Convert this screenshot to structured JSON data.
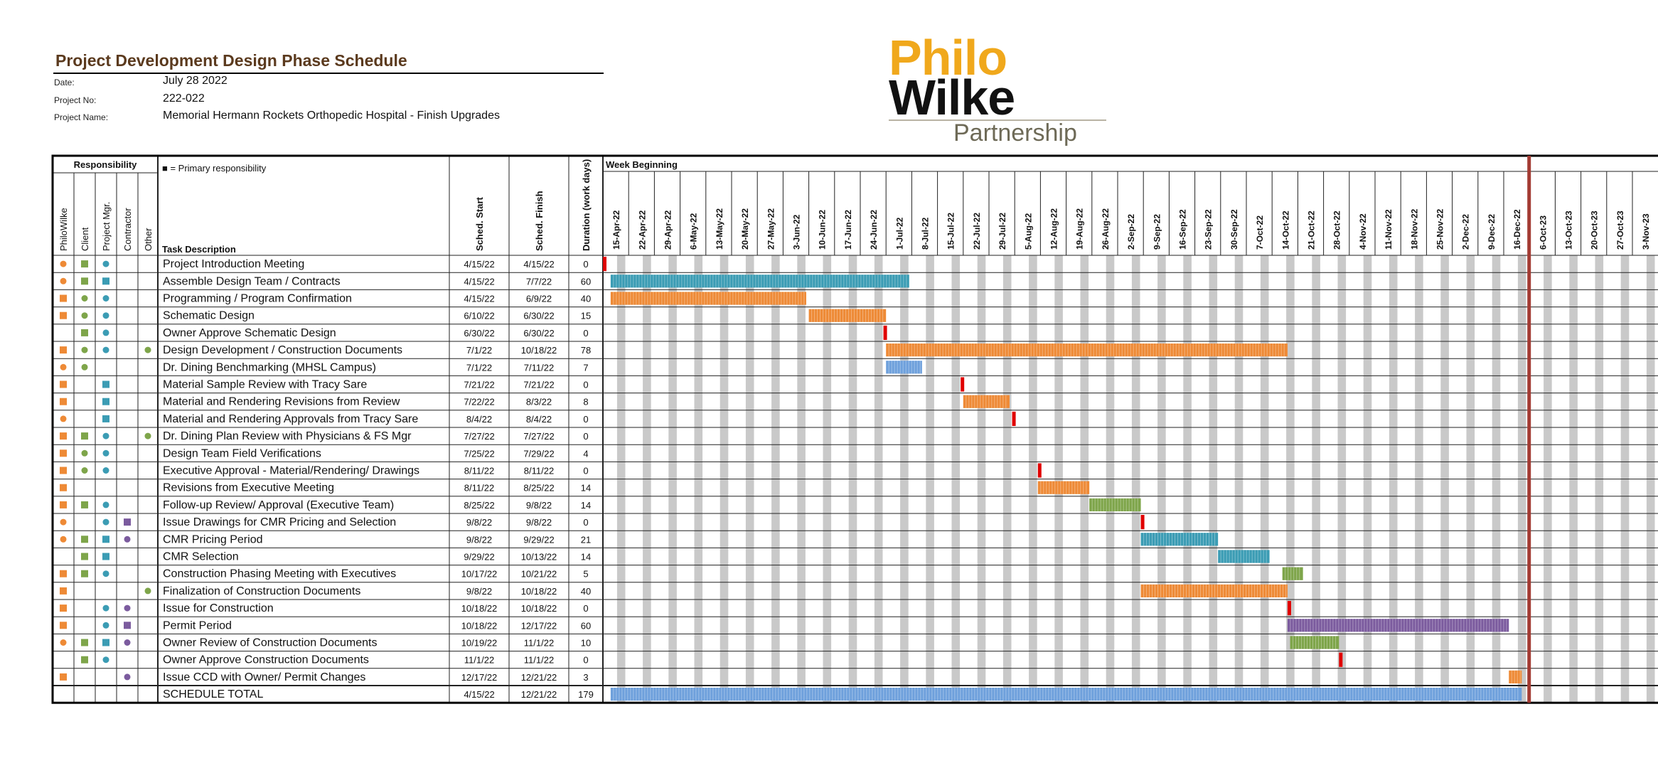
{
  "header": {
    "title": "Project Development Design Phase Schedule",
    "date_label": "Date:",
    "date_value": "July 28 2022",
    "project_no_label": "Project No:",
    "project_no_value": "222-022",
    "project_name_label": "Project Name:",
    "project_name_value": "Memorial Hermann Rockets Orthopedic Hospital - Finish Upgrades"
  },
  "logo": {
    "line1": "Philo",
    "line2": "Wilke",
    "line3": "Partnership"
  },
  "legend_text": "■ = Primary responsibility",
  "columns": {
    "responsibility": "Responsibility",
    "roles": [
      "PhiloWilke",
      "Client",
      "Project Mgr.",
      "Contractor",
      "Other"
    ],
    "task": "Task Description",
    "start": "Sched. Start",
    "finish": "Sched. Finish",
    "duration": "Duration (work days)",
    "week_beginning": "Week Beginning"
  },
  "colors": {
    "orange": "#ee8a36",
    "green": "#7ea54a",
    "teal": "#3b9cb4",
    "purple": "#7b5b9e",
    "blue": "#6ea0dc",
    "milestone": "#e00000",
    "today_line": "#a33b33",
    "week_shade": "#c9c9c9"
  },
  "chart_data": {
    "type": "gantt",
    "weeks": [
      "15-Apr-22",
      "22-Apr-22",
      "29-Apr-22",
      "6-May-22",
      "13-May-22",
      "20-May-22",
      "27-May-22",
      "3-Jun-22",
      "10-Jun-22",
      "17-Jun-22",
      "24-Jun-22",
      "1-Jul-22",
      "8-Jul-22",
      "15-Jul-22",
      "22-Jul-22",
      "29-Jul-22",
      "5-Aug-22",
      "12-Aug-22",
      "19-Aug-22",
      "26-Aug-22",
      "2-Sep-22",
      "9-Sep-22",
      "16-Sep-22",
      "23-Sep-22",
      "30-Sep-22",
      "7-Oct-22",
      "14-Oct-22",
      "21-Oct-22",
      "28-Oct-22",
      "4-Nov-22",
      "11-Nov-22",
      "18-Nov-22",
      "25-Nov-22",
      "2-Dec-22",
      "9-Dec-22",
      "16-Dec-22",
      "6-Oct-23",
      "13-Oct-23",
      "20-Oct-23",
      "27-Oct-23",
      "3-Nov-23"
    ],
    "today_after_week": "16-Dec-22",
    "tasks": [
      {
        "task": "Project Introduction Meeting",
        "start": "4/15/22",
        "finish": "4/15/22",
        "duration": "0",
        "start_week": 0,
        "end_week": 0,
        "color": "milestone",
        "roles": [
          {
            "c": "orange",
            "s": "dot"
          },
          {
            "c": "green",
            "s": "sq"
          },
          {
            "c": "teal",
            "s": "dot"
          }
        ]
      },
      {
        "task": "Assemble Design Team / Contracts",
        "start": "4/15/22",
        "finish": "7/7/22",
        "duration": "60",
        "start_week": 0.3,
        "end_week": 11.9,
        "color": "teal",
        "roles": [
          {
            "c": "orange",
            "s": "dot"
          },
          {
            "c": "green",
            "s": "sq"
          },
          {
            "c": "teal",
            "s": "sq"
          }
        ]
      },
      {
        "task": "Programming / Program Confirmation",
        "start": "4/15/22",
        "finish": "6/9/22",
        "duration": "40",
        "start_week": 0.3,
        "end_week": 7.9,
        "color": "orange",
        "roles": [
          {
            "c": "orange",
            "s": "sq"
          },
          {
            "c": "green",
            "s": "dot"
          },
          {
            "c": "teal",
            "s": "dot"
          }
        ]
      },
      {
        "task": "Schematic Design",
        "start": "6/10/22",
        "finish": "6/30/22",
        "duration": "15",
        "start_week": 8,
        "end_week": 11,
        "color": "orange",
        "roles": [
          {
            "c": "orange",
            "s": "sq"
          },
          {
            "c": "green",
            "s": "dot"
          },
          {
            "c": "teal",
            "s": "dot"
          }
        ]
      },
      {
        "task": "Owner Approve Schematic Design",
        "start": "6/30/22",
        "finish": "6/30/22",
        "duration": "0",
        "start_week": 10.9,
        "end_week": 10.9,
        "color": "milestone",
        "roles": [
          null,
          {
            "c": "green",
            "s": "sq"
          },
          {
            "c": "teal",
            "s": "dot"
          }
        ]
      },
      {
        "task": "Design Development / Construction Documents",
        "start": "7/1/22",
        "finish": "10/18/22",
        "duration": "78",
        "start_week": 11,
        "end_week": 26.6,
        "color": "orange",
        "roles": [
          {
            "c": "orange",
            "s": "sq"
          },
          {
            "c": "green",
            "s": "dot"
          },
          {
            "c": "teal",
            "s": "dot"
          },
          null,
          {
            "c": "green",
            "s": "dot"
          }
        ]
      },
      {
        "task": "Dr. Dining Benchmarking (MHSL Campus)",
        "start": "7/1/22",
        "finish": "7/11/22",
        "duration": "7",
        "start_week": 11,
        "end_week": 12.4,
        "color": "blue",
        "roles": [
          {
            "c": "orange",
            "s": "dot"
          },
          {
            "c": "green",
            "s": "dot"
          }
        ]
      },
      {
        "task": "Material Sample Review with Tracy Sare",
        "start": "7/21/22",
        "finish": "7/21/22",
        "duration": "0",
        "start_week": 13.9,
        "end_week": 13.9,
        "color": "milestone",
        "roles": [
          {
            "c": "orange",
            "s": "sq"
          },
          null,
          {
            "c": "teal",
            "s": "sq"
          }
        ]
      },
      {
        "task": "Material and Rendering Revisions from Review",
        "start": "7/22/22",
        "finish": "8/3/22",
        "duration": "8",
        "start_week": 14,
        "end_week": 15.8,
        "color": "orange",
        "roles": [
          {
            "c": "orange",
            "s": "sq"
          },
          null,
          {
            "c": "teal",
            "s": "sq"
          }
        ]
      },
      {
        "task": "Material and Rendering Approvals from Tracy Sare",
        "start": "8/4/22",
        "finish": "8/4/22",
        "duration": "0",
        "start_week": 15.9,
        "end_week": 15.9,
        "color": "milestone",
        "roles": [
          {
            "c": "orange",
            "s": "dot"
          },
          null,
          {
            "c": "teal",
            "s": "sq"
          }
        ]
      },
      {
        "task": "Dr. Dining Plan Review with Physicians & FS Mgr",
        "start": "7/27/22",
        "finish": "7/27/22",
        "duration": "0",
        "start_week": null,
        "end_week": null,
        "color": "none",
        "roles": [
          {
            "c": "orange",
            "s": "sq"
          },
          {
            "c": "green",
            "s": "sq"
          },
          {
            "c": "teal",
            "s": "dot"
          },
          null,
          {
            "c": "green",
            "s": "dot"
          }
        ]
      },
      {
        "task": "Design Team Field Verifications",
        "start": "7/25/22",
        "finish": "7/29/22",
        "duration": "4",
        "start_week": null,
        "end_week": null,
        "color": "none",
        "roles": [
          {
            "c": "orange",
            "s": "sq"
          },
          {
            "c": "green",
            "s": "dot"
          },
          {
            "c": "teal",
            "s": "dot"
          }
        ]
      },
      {
        "task": "Executive Approval - Material/Rendering/ Drawings",
        "start": "8/11/22",
        "finish": "8/11/22",
        "duration": "0",
        "start_week": 16.9,
        "end_week": 16.9,
        "color": "milestone",
        "roles": [
          {
            "c": "orange",
            "s": "sq"
          },
          {
            "c": "green",
            "s": "dot"
          },
          {
            "c": "teal",
            "s": "dot"
          }
        ]
      },
      {
        "task": "Revisions from Executive Meeting",
        "start": "8/11/22",
        "finish": "8/25/22",
        "duration": "14",
        "start_week": 16.9,
        "end_week": 18.9,
        "color": "orange",
        "roles": [
          {
            "c": "orange",
            "s": "sq"
          }
        ]
      },
      {
        "task": "Follow-up Review/ Approval (Executive Team)",
        "start": "8/25/22",
        "finish": "9/8/22",
        "duration": "14",
        "start_week": 18.9,
        "end_week": 20.9,
        "color": "green",
        "roles": [
          {
            "c": "orange",
            "s": "sq"
          },
          {
            "c": "green",
            "s": "sq"
          },
          {
            "c": "teal",
            "s": "dot"
          }
        ]
      },
      {
        "task": "Issue Drawings for CMR Pricing and Selection",
        "start": "9/8/22",
        "finish": "9/8/22",
        "duration": "0",
        "start_week": 20.9,
        "end_week": 20.9,
        "color": "milestone",
        "roles": [
          {
            "c": "orange",
            "s": "dot"
          },
          null,
          {
            "c": "teal",
            "s": "dot"
          },
          {
            "c": "purple",
            "s": "sq"
          }
        ]
      },
      {
        "task": "CMR Pricing Period",
        "start": "9/8/22",
        "finish": "9/29/22",
        "duration": "21",
        "start_week": 20.9,
        "end_week": 23.9,
        "color": "teal",
        "roles": [
          {
            "c": "orange",
            "s": "dot"
          },
          {
            "c": "green",
            "s": "sq"
          },
          {
            "c": "teal",
            "s": "sq"
          },
          {
            "c": "purple",
            "s": "dot"
          }
        ]
      },
      {
        "task": "CMR Selection",
        "start": "9/29/22",
        "finish": "10/13/22",
        "duration": "14",
        "start_week": 23.9,
        "end_week": 25.9,
        "color": "teal",
        "roles": [
          null,
          {
            "c": "green",
            "s": "sq"
          },
          {
            "c": "teal",
            "s": "sq"
          }
        ]
      },
      {
        "task": "Construction Phasing Meeting with Executives",
        "start": "10/17/22",
        "finish": "10/21/22",
        "duration": "5",
        "start_week": 26.4,
        "end_week": 27.2,
        "color": "green",
        "roles": [
          {
            "c": "orange",
            "s": "sq"
          },
          {
            "c": "green",
            "s": "sq"
          },
          {
            "c": "teal",
            "s": "dot"
          }
        ]
      },
      {
        "task": "Finalization of Construction Documents",
        "start": "9/8/22",
        "finish": "10/18/22",
        "duration": "40",
        "start_week": 20.9,
        "end_week": 26.6,
        "color": "orange",
        "roles": [
          {
            "c": "orange",
            "s": "sq"
          },
          null,
          null,
          null,
          {
            "c": "green",
            "s": "dot"
          }
        ]
      },
      {
        "task": "Issue for Construction",
        "start": "10/18/22",
        "finish": "10/18/22",
        "duration": "0",
        "start_week": 26.6,
        "end_week": 26.6,
        "color": "milestone",
        "roles": [
          {
            "c": "orange",
            "s": "sq"
          },
          null,
          {
            "c": "teal",
            "s": "dot"
          },
          {
            "c": "purple",
            "s": "dot"
          }
        ]
      },
      {
        "task": "Permit Period",
        "start": "10/18/22",
        "finish": "12/17/22",
        "duration": "60",
        "start_week": 26.6,
        "end_week": 35.2,
        "color": "purple",
        "roles": [
          {
            "c": "orange",
            "s": "sq"
          },
          null,
          {
            "c": "teal",
            "s": "dot"
          },
          {
            "c": "purple",
            "s": "sq"
          }
        ]
      },
      {
        "task": "Owner Review of Construction Documents",
        "start": "10/19/22",
        "finish": "11/1/22",
        "duration": "10",
        "start_week": 26.7,
        "end_week": 28.6,
        "color": "green",
        "roles": [
          {
            "c": "orange",
            "s": "dot"
          },
          {
            "c": "green",
            "s": "sq"
          },
          {
            "c": "teal",
            "s": "sq"
          },
          {
            "c": "purple",
            "s": "dot"
          }
        ]
      },
      {
        "task": "Owner Approve Construction Documents",
        "start": "11/1/22",
        "finish": "11/1/22",
        "duration": "0",
        "start_week": 28.6,
        "end_week": 28.6,
        "color": "milestone",
        "roles": [
          null,
          {
            "c": "green",
            "s": "sq"
          },
          {
            "c": "teal",
            "s": "dot"
          }
        ]
      },
      {
        "task": "Issue CCD with Owner/ Permit Changes",
        "start": "12/17/22",
        "finish": "12/21/22",
        "duration": "3",
        "start_week": 35.2,
        "end_week": 35.7,
        "color": "orange",
        "roles": [
          {
            "c": "orange",
            "s": "sq"
          },
          null,
          null,
          {
            "c": "purple",
            "s": "dot"
          }
        ]
      },
      {
        "task": "SCHEDULE TOTAL",
        "start": "4/15/22",
        "finish": "12/21/22",
        "duration": "179",
        "start_week": 0.3,
        "end_week": 35.7,
        "color": "blue",
        "roles": []
      }
    ]
  }
}
